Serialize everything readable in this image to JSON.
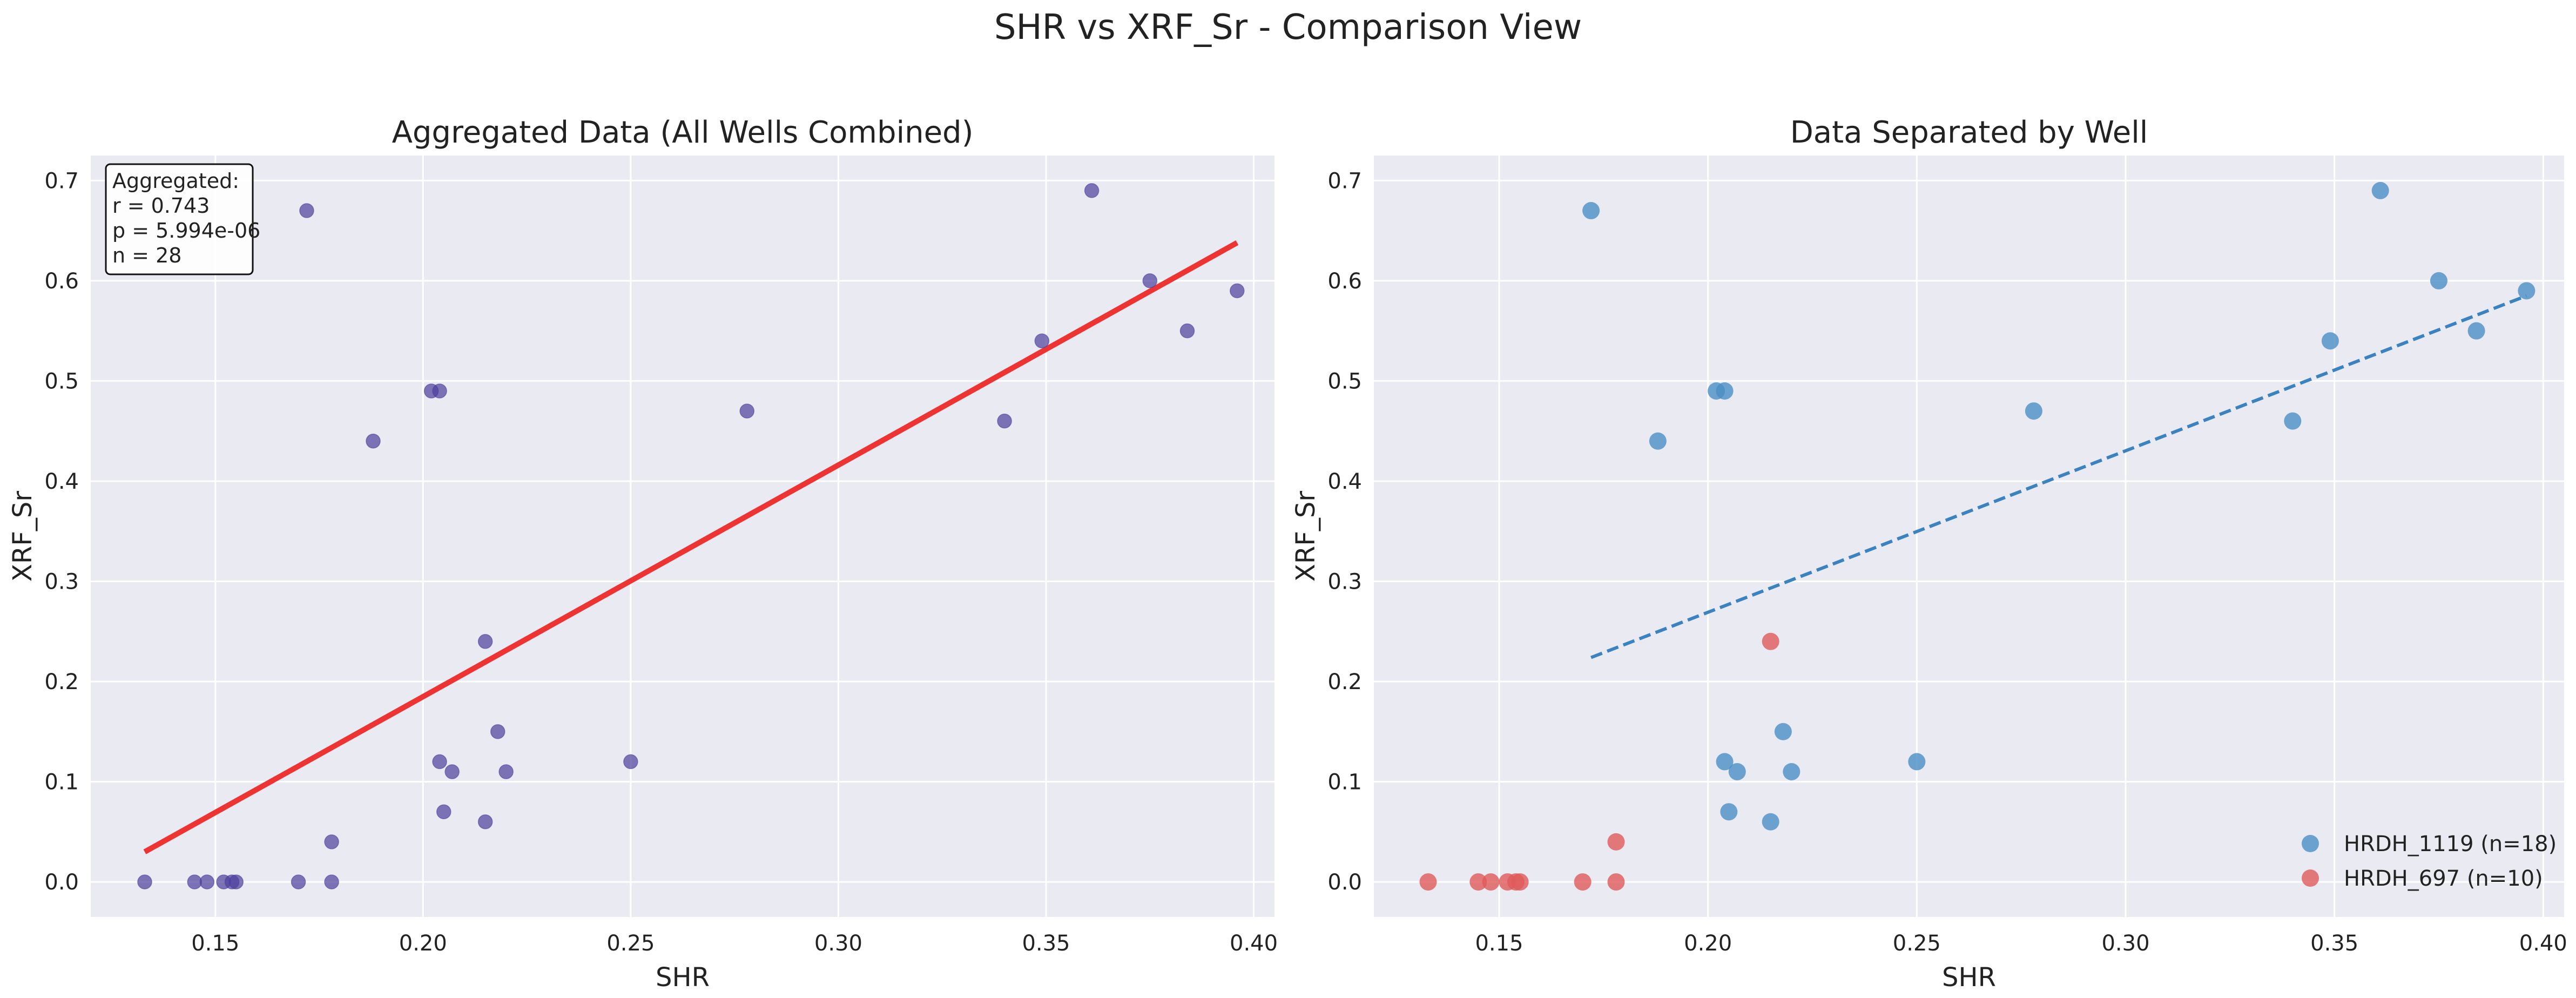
{
  "figure": {
    "suptitle": "SHR vs XRF_Sr - Comparison View"
  },
  "chart_data": [
    {
      "type": "scatter",
      "title": "Aggregated Data (All Wells Combined)",
      "xlabel": "SHR",
      "ylabel": "XRF_Sr",
      "xlim": [
        0.12,
        0.405
      ],
      "ylim": [
        -0.035,
        0.725
      ],
      "xticks": [
        0.15,
        0.2,
        0.25,
        0.3,
        0.35,
        0.4
      ],
      "xtick_labels": [
        "0.15",
        "0.20",
        "0.25",
        "0.30",
        "0.35",
        "0.40"
      ],
      "yticks": [
        0.0,
        0.1,
        0.2,
        0.3,
        0.4,
        0.5,
        0.6,
        0.7
      ],
      "ytick_labels": [
        "0.0",
        "0.1",
        "0.2",
        "0.3",
        "0.4",
        "0.5",
        "0.6",
        "0.7"
      ],
      "grid": true,
      "series": [
        {
          "color": "#4b3f9c",
          "points": [
            [
              0.133,
              0.0
            ],
            [
              0.145,
              0.0
            ],
            [
              0.148,
              0.0
            ],
            [
              0.152,
              0.0
            ],
            [
              0.154,
              0.0
            ],
            [
              0.155,
              0.0
            ],
            [
              0.17,
              0.0
            ],
            [
              0.178,
              0.0
            ],
            [
              0.178,
              0.04
            ],
            [
              0.215,
              0.24
            ],
            [
              0.172,
              0.67
            ],
            [
              0.188,
              0.44
            ],
            [
              0.202,
              0.49
            ],
            [
              0.204,
              0.49
            ],
            [
              0.204,
              0.12
            ],
            [
              0.205,
              0.07
            ],
            [
              0.207,
              0.11
            ],
            [
              0.215,
              0.06
            ],
            [
              0.218,
              0.15
            ],
            [
              0.22,
              0.11
            ],
            [
              0.25,
              0.12
            ],
            [
              0.278,
              0.47
            ],
            [
              0.34,
              0.46
            ],
            [
              0.349,
              0.54
            ],
            [
              0.361,
              0.69
            ],
            [
              0.375,
              0.6
            ],
            [
              0.384,
              0.55
            ],
            [
              0.396,
              0.59
            ]
          ]
        }
      ],
      "fit_line": {
        "color": "#ee3333",
        "style": "solid",
        "x": [
          0.133,
          0.396
        ],
        "y": [
          0.03,
          0.638
        ]
      },
      "annotation": [
        "Aggregated:",
        "r = 0.743",
        "p = 5.994e-06",
        "n = 28"
      ],
      "colors": {
        "background": "#eaeaf2",
        "grid": "#ffffff"
      }
    },
    {
      "type": "scatter",
      "title": "Data Separated by Well",
      "xlabel": "SHR",
      "ylabel": "XRF_Sr",
      "xlim": [
        0.12,
        0.405
      ],
      "ylim": [
        -0.035,
        0.725
      ],
      "xticks": [
        0.15,
        0.2,
        0.25,
        0.3,
        0.35,
        0.4
      ],
      "xtick_labels": [
        "0.15",
        "0.20",
        "0.25",
        "0.30",
        "0.35",
        "0.40"
      ],
      "yticks": [
        0.0,
        0.1,
        0.2,
        0.3,
        0.4,
        0.5,
        0.6,
        0.7
      ],
      "ytick_labels": [
        "0.0",
        "0.1",
        "0.2",
        "0.3",
        "0.4",
        "0.5",
        "0.6",
        "0.7"
      ],
      "grid": true,
      "legend_position": "bottom-right",
      "series": [
        {
          "name": "HRDH_1119 (n=18)",
          "color": "#4a8fc4",
          "points": [
            [
              0.172,
              0.67
            ],
            [
              0.188,
              0.44
            ],
            [
              0.202,
              0.49
            ],
            [
              0.204,
              0.49
            ],
            [
              0.204,
              0.12
            ],
            [
              0.205,
              0.07
            ],
            [
              0.207,
              0.11
            ],
            [
              0.215,
              0.06
            ],
            [
              0.218,
              0.15
            ],
            [
              0.22,
              0.11
            ],
            [
              0.25,
              0.12
            ],
            [
              0.278,
              0.47
            ],
            [
              0.34,
              0.46
            ],
            [
              0.349,
              0.54
            ],
            [
              0.361,
              0.69
            ],
            [
              0.375,
              0.6
            ],
            [
              0.384,
              0.55
            ],
            [
              0.396,
              0.59
            ]
          ]
        },
        {
          "name": "HRDH_697 (n=10)",
          "color": "#e05a5a",
          "points": [
            [
              0.133,
              0.0
            ],
            [
              0.145,
              0.0
            ],
            [
              0.148,
              0.0
            ],
            [
              0.152,
              0.0
            ],
            [
              0.154,
              0.0
            ],
            [
              0.155,
              0.0
            ],
            [
              0.17,
              0.0
            ],
            [
              0.178,
              0.0
            ],
            [
              0.178,
              0.04
            ],
            [
              0.215,
              0.24
            ]
          ]
        }
      ],
      "fit_line": {
        "color": "#3a82c0",
        "style": "dashed",
        "x": [
          0.172,
          0.396
        ],
        "y": [
          0.224,
          0.585
        ]
      },
      "colors": {
        "background": "#eaeaf2",
        "grid": "#ffffff"
      }
    }
  ]
}
